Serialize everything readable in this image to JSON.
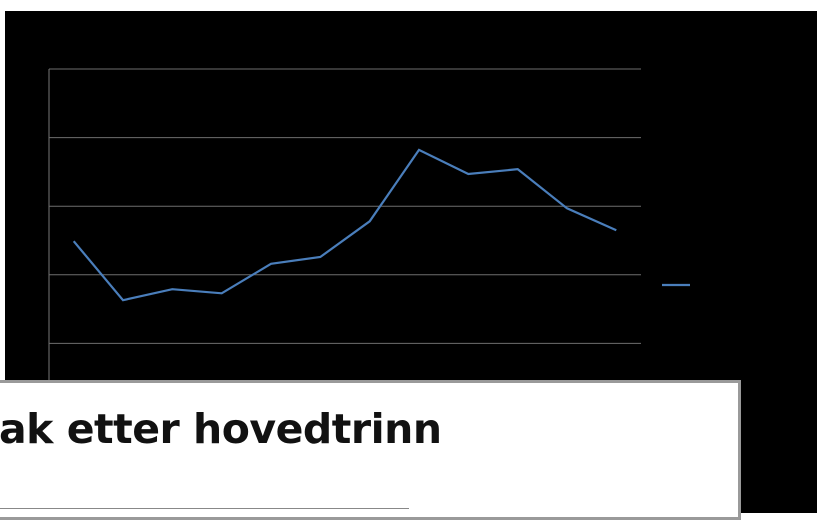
{
  "chart_data": {
    "type": "line",
    "categories": [
      null,
      null,
      null,
      null,
      null,
      null,
      null,
      null,
      null,
      null,
      null,
      null
    ],
    "values": [
      2.49,
      1.63,
      1.79,
      1.73,
      2.16,
      2.26,
      2.78,
      3.82,
      3.47,
      3.54,
      2.97,
      2.65
    ],
    "color": "#4a7ebb",
    "ylim": [
      0,
      5
    ],
    "yticks": [
      0,
      1,
      2,
      3,
      4,
      5
    ],
    "grid": true
  },
  "overlay": {
    "title": "ak etter hovedtrinn"
  }
}
